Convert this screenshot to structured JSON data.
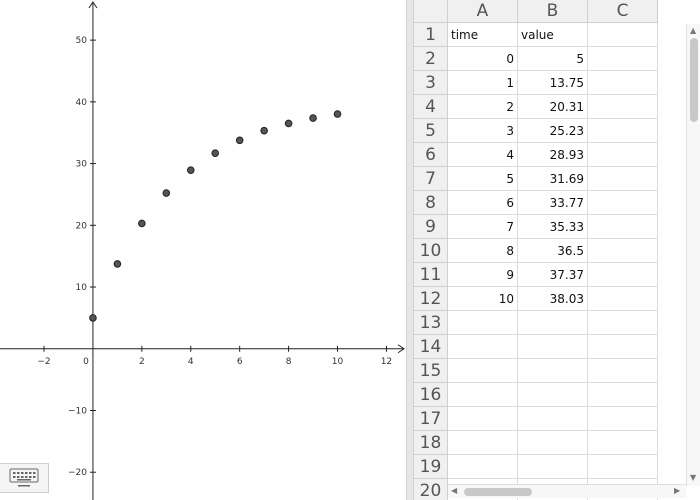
{
  "graphics": {
    "x_tick_labels": [
      "−2",
      "0",
      "2",
      "4",
      "6",
      "8",
      "10",
      "12"
    ],
    "y_tick_labels": [
      "50",
      "40",
      "30",
      "20",
      "10",
      "−10",
      "−20"
    ],
    "point_color": "#555555"
  },
  "spreadsheet": {
    "columns": [
      "A",
      "B",
      "C"
    ],
    "rows": [
      "1",
      "2",
      "3",
      "4",
      "5",
      "6",
      "7",
      "8",
      "9",
      "10",
      "11",
      "12",
      "13",
      "14",
      "15",
      "16",
      "17",
      "18",
      "19",
      "20"
    ],
    "header_row": [
      "time",
      "value"
    ],
    "data": [
      [
        "0",
        "5"
      ],
      [
        "1",
        "13.75"
      ],
      [
        "2",
        "20.31"
      ],
      [
        "3",
        "25.23"
      ],
      [
        "4",
        "28.93"
      ],
      [
        "5",
        "31.69"
      ],
      [
        "6",
        "33.77"
      ],
      [
        "7",
        "35.33"
      ],
      [
        "8",
        "36.5"
      ],
      [
        "9",
        "37.37"
      ],
      [
        "10",
        "38.03"
      ]
    ]
  },
  "chart_data": {
    "type": "scatter",
    "x": [
      0,
      1,
      2,
      3,
      4,
      5,
      6,
      7,
      8,
      9,
      10
    ],
    "y": [
      5,
      13.75,
      20.31,
      25.23,
      28.93,
      31.69,
      33.77,
      35.33,
      36.5,
      37.37,
      38.03
    ],
    "xlim": [
      -3.8,
      12.8
    ],
    "ylim": [
      -24.5,
      56.5
    ],
    "x_ticks": [
      -2,
      0,
      2,
      4,
      6,
      8,
      10,
      12
    ],
    "y_ticks": [
      -20,
      -10,
      10,
      20,
      30,
      40,
      50
    ],
    "grid": false
  },
  "icons": {
    "keyboard": "keyboard-icon"
  }
}
